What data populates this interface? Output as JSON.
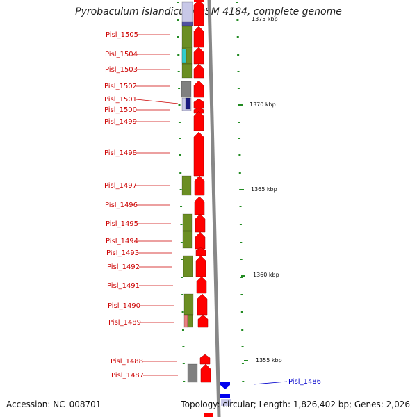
{
  "title": "Pyrobaculum islandicum DSM 4184, complete genome",
  "footer": {
    "accession": "Accession: NC_008701",
    "summary": "Topology: circular; Length: 1,826,402 bp; Genes: 2,026"
  },
  "colors": {
    "forward_gene": "#ff0000",
    "reverse_gene": "#0000ee",
    "label_forward": "#cc0000",
    "label_reverse": "#0000cc",
    "cog_green": "#6b8e23",
    "cog_gray": "#808080",
    "cog_cyan": "#33cccc",
    "cog_navy": "#1a1a80",
    "cog_lavender": "#c8c8e8",
    "cog_pink": "#e88080",
    "tick_green": "#228b22",
    "backbone": "#888888"
  },
  "scale_labels": [
    "1375 kbp",
    "1370 kbp",
    "1365 kbp",
    "1360 kbp",
    "1355 kbp"
  ],
  "forward_labels": [
    "Pisl_1505",
    "Pisl_1504",
    "Pisl_1503",
    "Pisl_1502",
    "Pisl_1501",
    "Pisl_1500",
    "Pisl_1499",
    "Pisl_1498",
    "Pisl_1497",
    "Pisl_1496",
    "Pisl_1495",
    "Pisl_1494",
    "Pisl_1493",
    "Pisl_1492",
    "Pisl_1491",
    "Pisl_1490",
    "Pisl_1489",
    "Pisl_1488",
    "Pisl_1487"
  ],
  "reverse_labels": [
    "Pisl_1486"
  ]
}
